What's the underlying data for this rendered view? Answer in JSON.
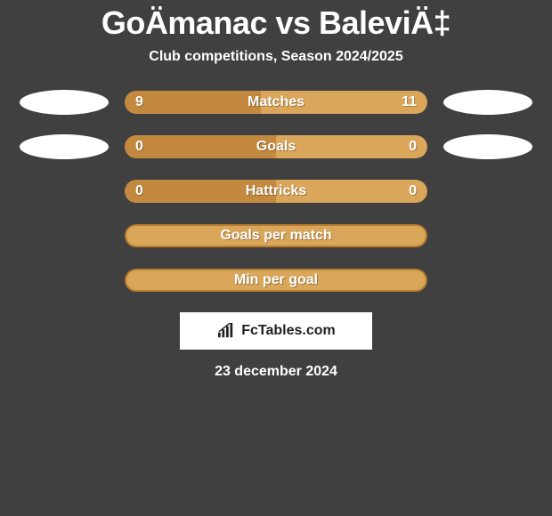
{
  "header": {
    "title": "GoÄmanac vs BaleviÄ‡",
    "subtitle": "Club competitions, Season 2024/2025"
  },
  "colors": {
    "left_fill": "#c2893f",
    "right_fill": "#d9a65a",
    "neutral_bg": "#d9a65a",
    "neutral_border": "#b87d2f",
    "oval": "#ffffff",
    "bg": "#404040"
  },
  "rows": [
    {
      "label": "Matches",
      "left_val": "9",
      "right_val": "11",
      "left_pct": 45,
      "show_ovals": true,
      "bg_color": "#d9a65a",
      "left_color": "#c2893f"
    },
    {
      "label": "Goals",
      "left_val": "0",
      "right_val": "0",
      "left_pct": 50,
      "show_ovals": true,
      "bg_color": "#d9a65a",
      "left_color": "#c2893f"
    },
    {
      "label": "Hattricks",
      "left_val": "0",
      "right_val": "0",
      "left_pct": 50,
      "show_ovals": false,
      "bg_color": "#d9a65a",
      "left_color": "#c2893f"
    },
    {
      "label": "Goals per match",
      "left_val": "",
      "right_val": "",
      "left_pct": 0,
      "show_ovals": false,
      "bg_color": "#d9a65a",
      "border_color": "#b87d2f"
    },
    {
      "label": "Min per goal",
      "left_val": "",
      "right_val": "",
      "left_pct": 0,
      "show_ovals": false,
      "bg_color": "#d9a65a",
      "border_color": "#b87d2f"
    }
  ],
  "footer": {
    "brand": "FcTables.com",
    "date": "23 december 2024"
  }
}
